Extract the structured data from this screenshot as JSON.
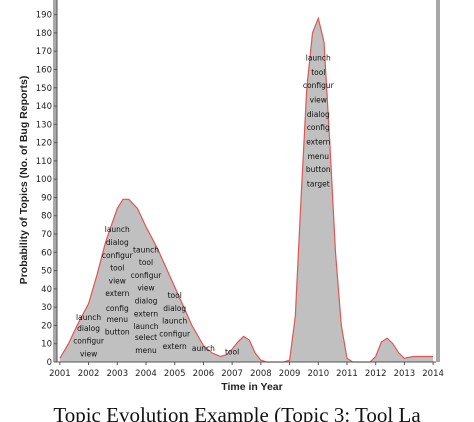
{
  "chart_data": {
    "type": "area",
    "title": "",
    "xlabel": "Time in Year",
    "ylabel": "Probability of Topics (No. of Bug Reports)",
    "xlim": [
      2000.9,
      2014.1
    ],
    "ylim": [
      0,
      198
    ],
    "x_ticks": [
      "2001",
      "2002",
      "2003",
      "2004",
      "2005",
      "2006",
      "2007",
      "2008",
      "2009",
      "2010",
      "2011",
      "2012",
      "2013",
      "2014"
    ],
    "y_ticks": [
      "0",
      "10",
      "20",
      "30",
      "40",
      "50",
      "60",
      "70",
      "80",
      "90",
      "100",
      "110",
      "120",
      "130",
      "140",
      "150",
      "160",
      "170",
      "180",
      "190"
    ],
    "grid": false,
    "legend": "none",
    "colors": {
      "fill": "#c0c0c0",
      "line": "#e05555",
      "axis": "#555555",
      "frame": "#a8a8a8"
    },
    "series": [
      {
        "x": [
          2001.0,
          2001.3,
          2001.6,
          2002.0,
          2002.3,
          2002.6,
          2003.0,
          2003.2,
          2003.4,
          2003.7,
          2004.0,
          2004.4,
          2004.8,
          2005.2,
          2005.6,
          2006.0,
          2006.3,
          2006.6,
          2006.8,
          2007.0,
          2007.2,
          2007.4,
          2007.6,
          2007.8,
          2008.0,
          2008.2,
          2008.5,
          2008.8,
          2009.0,
          2009.2,
          2009.4,
          2009.6,
          2009.8,
          2010.0,
          2010.2,
          2010.4,
          2010.6,
          2010.8,
          2011.0,
          2011.2,
          2011.4,
          2011.6,
          2011.8,
          2012.0,
          2012.2,
          2012.4,
          2012.6,
          2012.8,
          2013.0,
          2013.3,
          2013.6,
          2014.0
        ],
        "values": [
          2,
          10,
          20,
          32,
          48,
          66,
          84,
          89,
          89,
          84,
          74,
          62,
          48,
          34,
          20,
          9,
          5,
          3,
          4,
          7,
          11,
          14,
          12,
          5,
          1,
          0,
          0,
          0,
          1,
          25,
          90,
          150,
          180,
          188,
          175,
          120,
          60,
          20,
          2,
          0,
          0,
          0,
          0,
          3,
          11,
          13,
          10,
          5,
          2,
          3,
          3,
          3
        ]
      }
    ],
    "annotations": [
      {
        "text": "launch",
        "x": 2002.0,
        "y": 23
      },
      {
        "text": "dialog",
        "x": 2002.0,
        "y": 17
      },
      {
        "text": "configur",
        "x": 2002.0,
        "y": 10
      },
      {
        "text": "view",
        "x": 2002.0,
        "y": 3
      },
      {
        "text": "launch",
        "x": 2003.0,
        "y": 71
      },
      {
        "text": "dialog",
        "x": 2003.0,
        "y": 64
      },
      {
        "text": "configur",
        "x": 2003.0,
        "y": 57
      },
      {
        "text": "tool",
        "x": 2003.0,
        "y": 50
      },
      {
        "text": "view",
        "x": 2003.0,
        "y": 43
      },
      {
        "text": "extern",
        "x": 2003.0,
        "y": 36
      },
      {
        "text": "config",
        "x": 2003.0,
        "y": 28
      },
      {
        "text": "menu",
        "x": 2003.0,
        "y": 22
      },
      {
        "text": "button",
        "x": 2003.0,
        "y": 15
      },
      {
        "text": "taunch",
        "x": 2004.0,
        "y": 60
      },
      {
        "text": "tool",
        "x": 2004.0,
        "y": 53
      },
      {
        "text": "configur",
        "x": 2004.0,
        "y": 46
      },
      {
        "text": "view",
        "x": 2004.0,
        "y": 39
      },
      {
        "text": "dialog",
        "x": 2004.0,
        "y": 32
      },
      {
        "text": "extern",
        "x": 2004.0,
        "y": 25
      },
      {
        "text": "launch",
        "x": 2004.0,
        "y": 18
      },
      {
        "text": "select",
        "x": 2004.0,
        "y": 12
      },
      {
        "text": "menu",
        "x": 2004.0,
        "y": 5
      },
      {
        "text": "tool",
        "x": 2005.0,
        "y": 35
      },
      {
        "text": "dialog",
        "x": 2005.0,
        "y": 28
      },
      {
        "text": "launch",
        "x": 2005.0,
        "y": 21
      },
      {
        "text": "configur",
        "x": 2005.0,
        "y": 14
      },
      {
        "text": "extern",
        "x": 2005.0,
        "y": 7
      },
      {
        "text": "aunch",
        "x": 2006.0,
        "y": 6
      },
      {
        "text": "tool",
        "x": 2007.0,
        "y": 4
      },
      {
        "text": "launch",
        "x": 2010.0,
        "y": 165
      },
      {
        "text": "tool",
        "x": 2010.0,
        "y": 157
      },
      {
        "text": "configur",
        "x": 2010.0,
        "y": 150
      },
      {
        "text": "view",
        "x": 2010.0,
        "y": 142
      },
      {
        "text": "dialog",
        "x": 2010.0,
        "y": 134
      },
      {
        "text": "config",
        "x": 2010.0,
        "y": 127
      },
      {
        "text": "extern",
        "x": 2010.0,
        "y": 119
      },
      {
        "text": "menu",
        "x": 2010.0,
        "y": 111
      },
      {
        "text": "button",
        "x": 2010.0,
        "y": 104
      },
      {
        "text": "target",
        "x": 2010.0,
        "y": 96
      }
    ]
  },
  "caption": "Topic Evolution Example (Topic 3: Tool La"
}
